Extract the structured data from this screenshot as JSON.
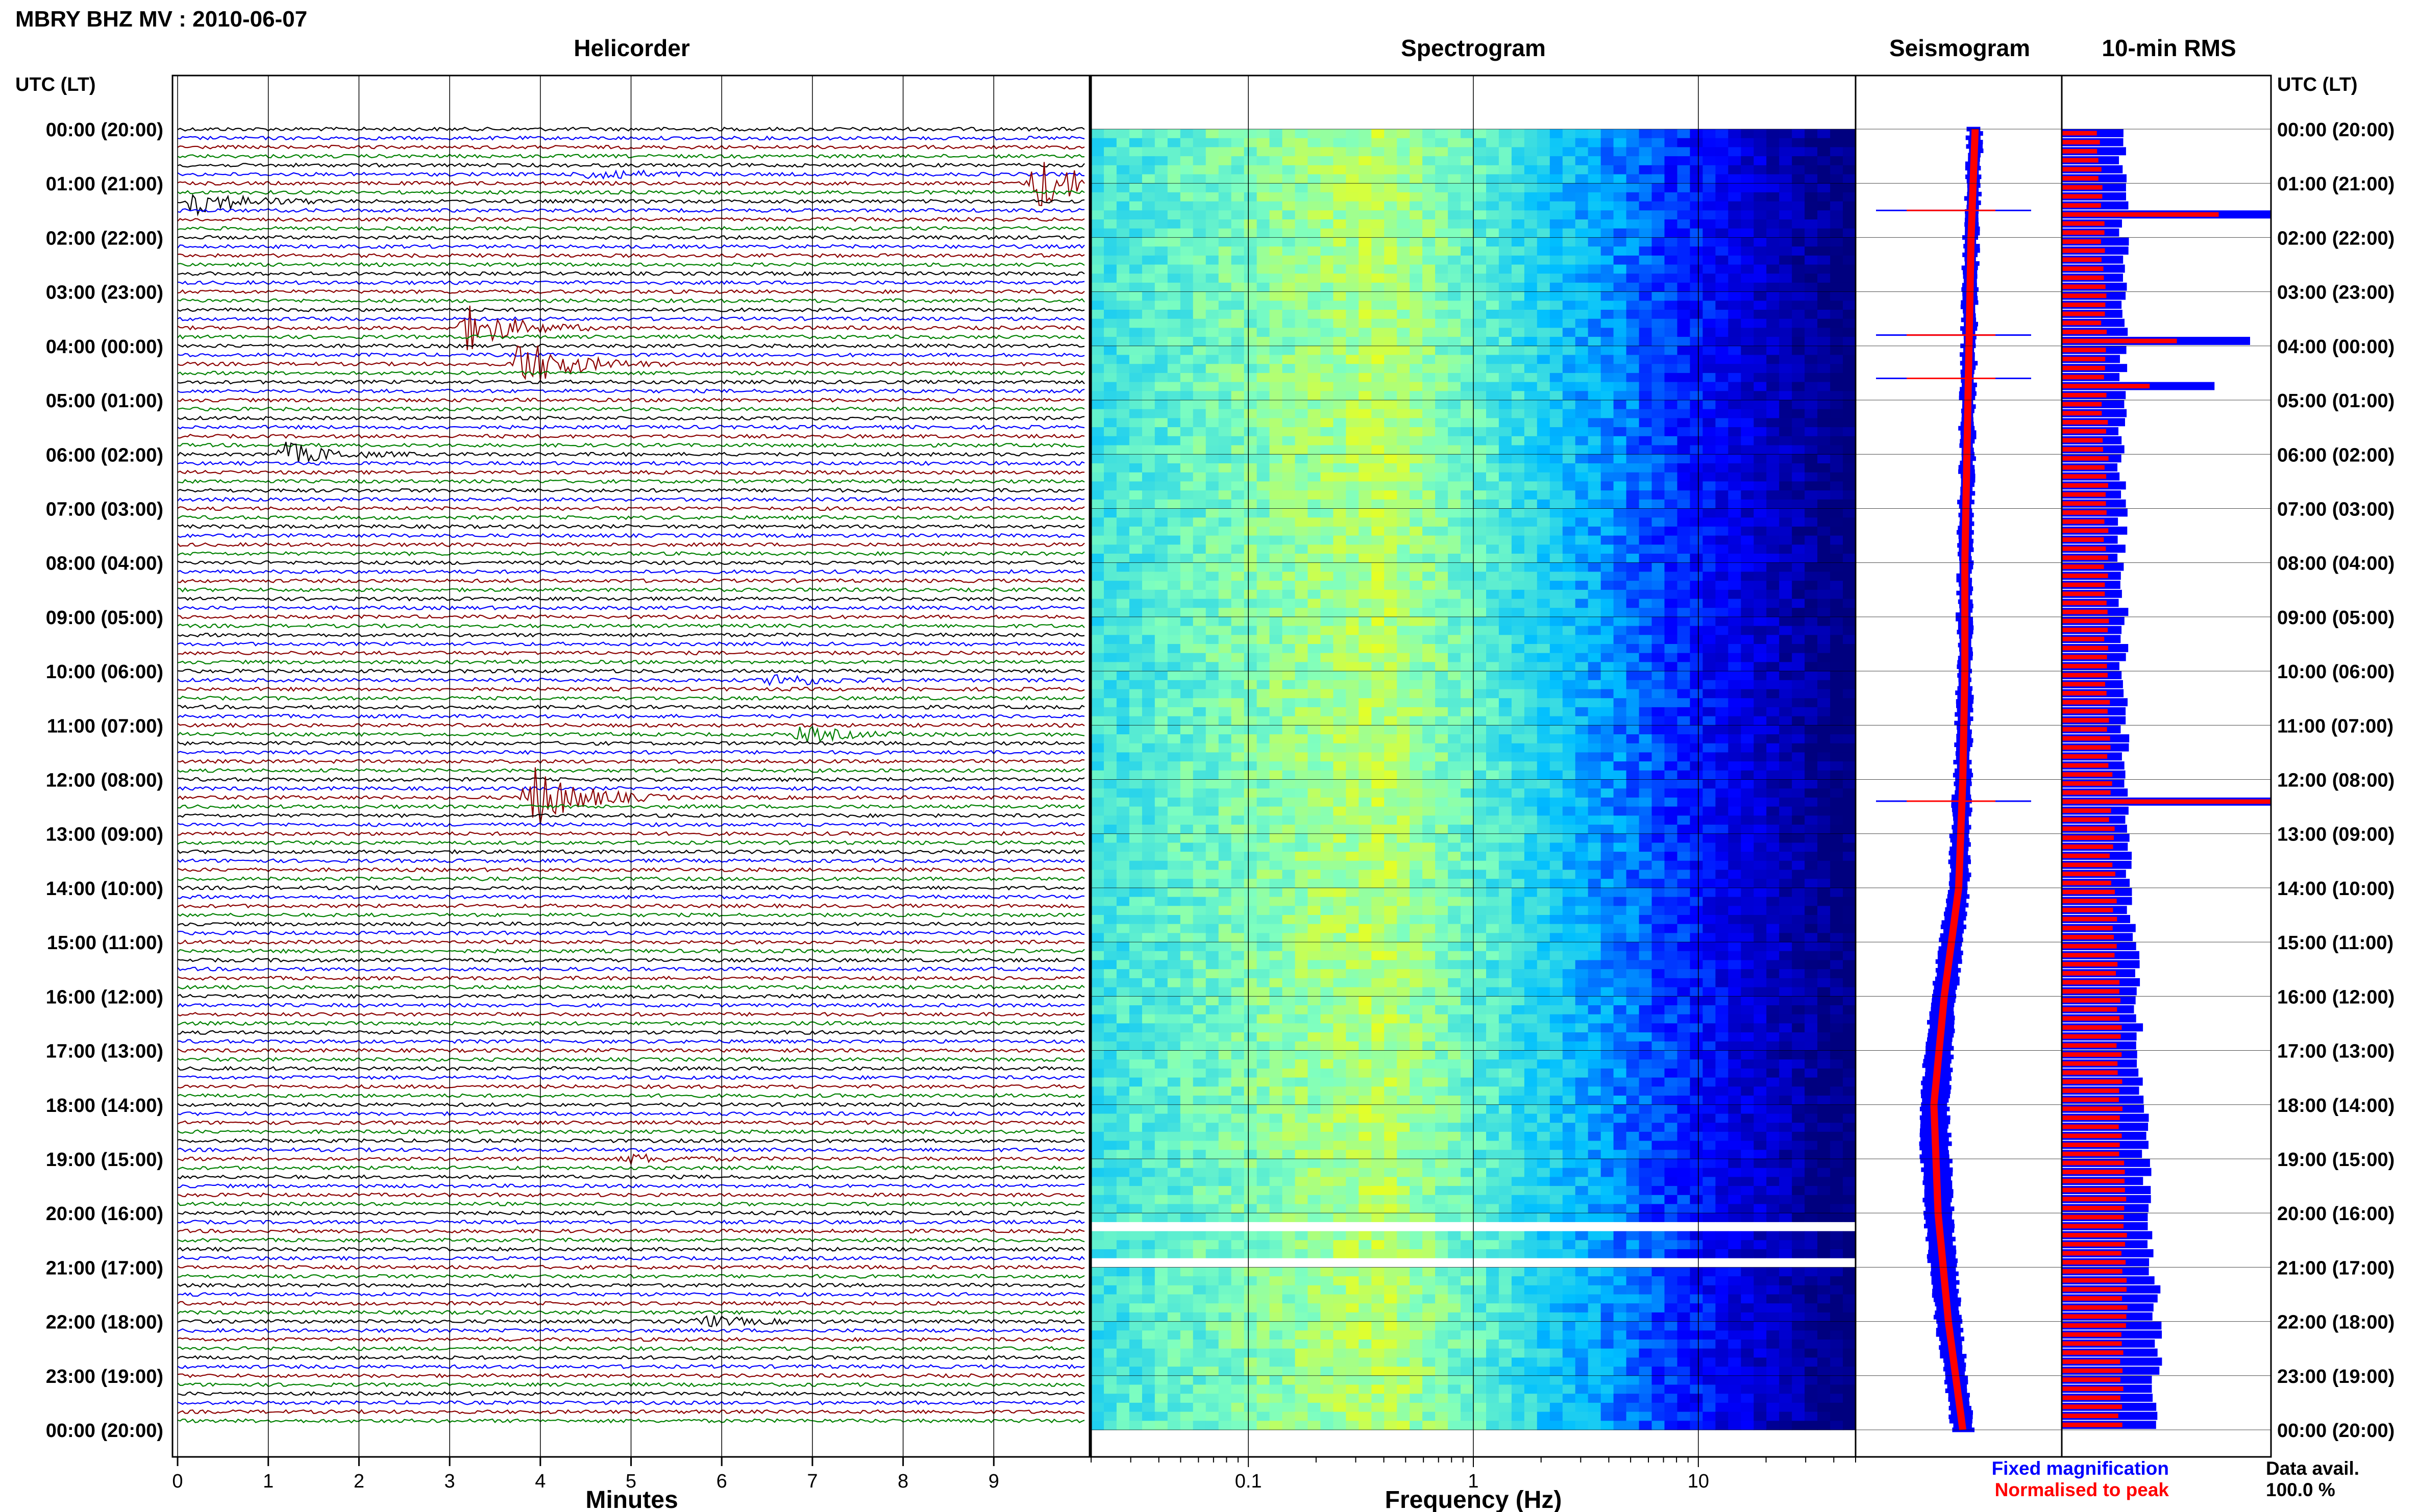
{
  "title": "MBRY BHZ MV : 2010-06-07",
  "panels": {
    "helicorder": "Helicorder",
    "spectrogram": "Spectrogram",
    "seismogram": "Seismogram",
    "rms": "10-min RMS"
  },
  "axis_labels": {
    "utc_left": "UTC (LT)",
    "utc_right": "UTC (LT)",
    "minutes": "Minutes",
    "frequency": "Frequency (Hz)"
  },
  "time_labels": [
    "00:00 (20:00)",
    "01:00 (21:00)",
    "02:00 (22:00)",
    "03:00 (23:00)",
    "04:00 (00:00)",
    "05:00 (01:00)",
    "06:00 (02:00)",
    "07:00 (03:00)",
    "08:00 (04:00)",
    "09:00 (05:00)",
    "10:00 (06:00)",
    "11:00 (07:00)",
    "12:00 (08:00)",
    "13:00 (09:00)",
    "14:00 (10:00)",
    "15:00 (11:00)",
    "16:00 (12:00)",
    "17:00 (13:00)",
    "18:00 (14:00)",
    "19:00 (15:00)",
    "20:00 (16:00)",
    "21:00 (17:00)",
    "22:00 (18:00)",
    "23:00 (19:00)",
    "00:00 (20:00)"
  ],
  "minute_ticks": [
    "0",
    "1",
    "2",
    "3",
    "4",
    "5",
    "6",
    "7",
    "8",
    "9"
  ],
  "freq_ticks": [
    "0.1",
    "1",
    "10"
  ],
  "legend": {
    "fixed": "Fixed magnification",
    "normalised": "Normalised to peak",
    "fixed_color": "#0000ff",
    "normalised_color": "#ff0000"
  },
  "data_avail": {
    "label": "Data avail.",
    "value": "100.0 %"
  },
  "chart_data": {
    "type": "heatmap",
    "helicorder": {
      "minutes_per_line": 10,
      "lines": 144,
      "trace_colors": [
        "#000000",
        "#0000ff",
        "#8b0000",
        "#008000"
      ],
      "events": [
        {
          "hour": 1.0,
          "minute": 9.5,
          "amplitude": 2.5
        },
        {
          "hour": 1.3,
          "minute": 0.2,
          "amplitude": 1.2
        },
        {
          "hour": 0.9,
          "minute": 4.6,
          "amplitude": 0.6
        },
        {
          "hour": 3.6,
          "minute": 3.2,
          "amplitude": 2.0
        },
        {
          "hour": 4.4,
          "minute": 3.8,
          "amplitude": 2.4
        },
        {
          "hour": 6.0,
          "minute": 1.2,
          "amplitude": 1.0
        },
        {
          "hour": 10.2,
          "minute": 6.6,
          "amplitude": 0.6
        },
        {
          "hour": 11.1,
          "minute": 6.9,
          "amplitude": 0.7
        },
        {
          "hour": 12.3,
          "minute": 3.9,
          "amplitude": 3.0
        },
        {
          "hour": 19.0,
          "minute": 5.0,
          "amplitude": 0.4
        },
        {
          "hour": 22.0,
          "minute": 5.8,
          "amplitude": 0.5
        }
      ]
    },
    "spectrogram": {
      "freq_range_hz": [
        0.02,
        50
      ],
      "freq_scale": "log",
      "colormap": [
        "#00007f",
        "#0000ff",
        "#00bfff",
        "#7fffbf",
        "#ffff00"
      ],
      "data_gaps_hours": [
        20.2,
        20.8
      ]
    },
    "seismogram": {
      "hours": [
        0,
        2,
        4,
        6,
        8,
        10,
        12,
        14,
        16,
        18,
        20,
        22,
        24
      ],
      "normalised_x": [
        0.58,
        0.56,
        0.55,
        0.54,
        0.53,
        0.53,
        0.52,
        0.5,
        0.43,
        0.38,
        0.4,
        0.45,
        0.52
      ],
      "fixed_width": [
        0.05,
        0.05,
        0.05,
        0.05,
        0.05,
        0.05,
        0.06,
        0.08,
        0.1,
        0.12,
        0.12,
        0.1,
        0.08
      ],
      "spikes_hours": [
        1.5,
        3.8,
        4.6,
        12.4
      ]
    },
    "rms": {
      "interval_min": 10,
      "hours": [
        0,
        2,
        4,
        6,
        8,
        10,
        12,
        14,
        16,
        18,
        20,
        22,
        24
      ],
      "fixed": [
        0.28,
        0.3,
        0.3,
        0.29,
        0.29,
        0.3,
        0.3,
        0.33,
        0.36,
        0.4,
        0.42,
        0.46,
        0.45
      ],
      "normalised": [
        0.18,
        0.2,
        0.2,
        0.21,
        0.21,
        0.22,
        0.23,
        0.25,
        0.27,
        0.28,
        0.3,
        0.3,
        0.28
      ],
      "spikes": [
        {
          "hour": 1.5,
          "fixed": 1.0,
          "normalised": 0.75
        },
        {
          "hour": 3.8,
          "fixed": 0.9,
          "normalised": 0.55
        },
        {
          "hour": 4.6,
          "fixed": 0.73,
          "normalised": 0.42
        },
        {
          "hour": 12.4,
          "fixed": 1.0,
          "normalised": 1.0
        }
      ]
    }
  }
}
